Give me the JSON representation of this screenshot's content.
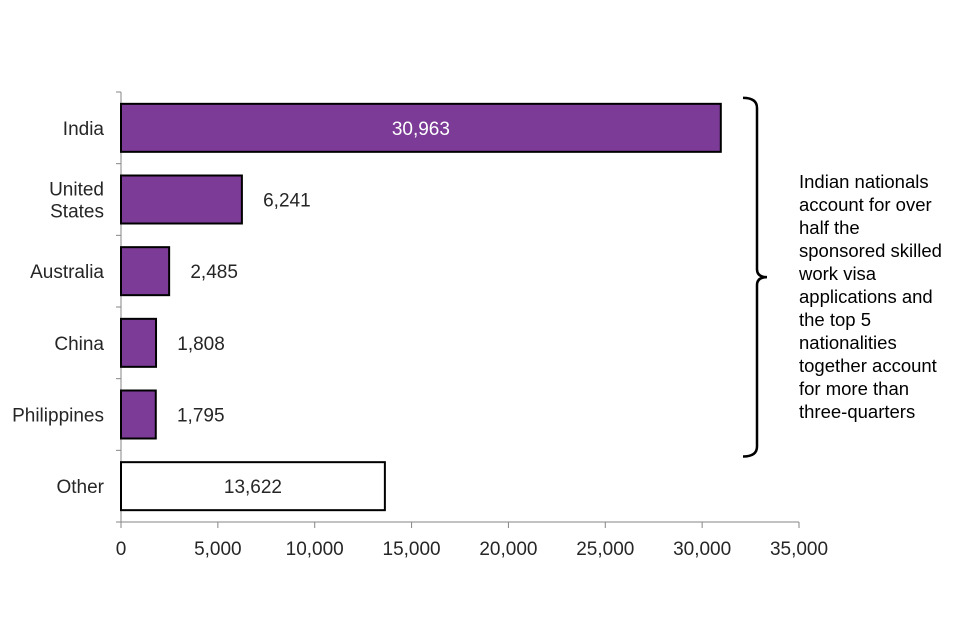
{
  "chart_data": {
    "type": "bar",
    "orientation": "horizontal",
    "categories": [
      "India",
      "United States",
      "Australia",
      "China",
      "Philippines",
      "Other"
    ],
    "category_lines": [
      [
        "India"
      ],
      [
        "United",
        "States"
      ],
      [
        "Australia"
      ],
      [
        "China"
      ],
      [
        "Philippines"
      ],
      [
        "Other"
      ]
    ],
    "values": [
      30963,
      6241,
      2485,
      1808,
      1795,
      13622
    ],
    "data_labels": [
      "30,963",
      "6,241",
      "2,485",
      "1,808",
      "1,795",
      "13,622"
    ],
    "xlim": [
      0,
      35000
    ],
    "x_ticks": [
      0,
      5000,
      10000,
      15000,
      20000,
      25000,
      30000,
      35000
    ],
    "x_tick_labels": [
      "0",
      "5,000",
      "10,000",
      "15,000",
      "20,000",
      "25,000",
      "30,000",
      "35,000"
    ],
    "grid": false,
    "legend": "none",
    "colors": {
      "highlight_fill": "#7b3b96",
      "other_fill": "#ffffff",
      "bar_stroke": "#000000",
      "inside_label": "#ffffff",
      "outside_label": "#262626"
    },
    "annotation": {
      "bracket_categories": [
        "India",
        "United States",
        "Australia",
        "China",
        "Philippines"
      ],
      "text": "Indian nationals\naccount for over\nhalf the\nsponsored skilled\nwork visa\napplications and\nthe top 5\nnationalities\ntogether account\nfor more than\nthree-quarters"
    }
  }
}
